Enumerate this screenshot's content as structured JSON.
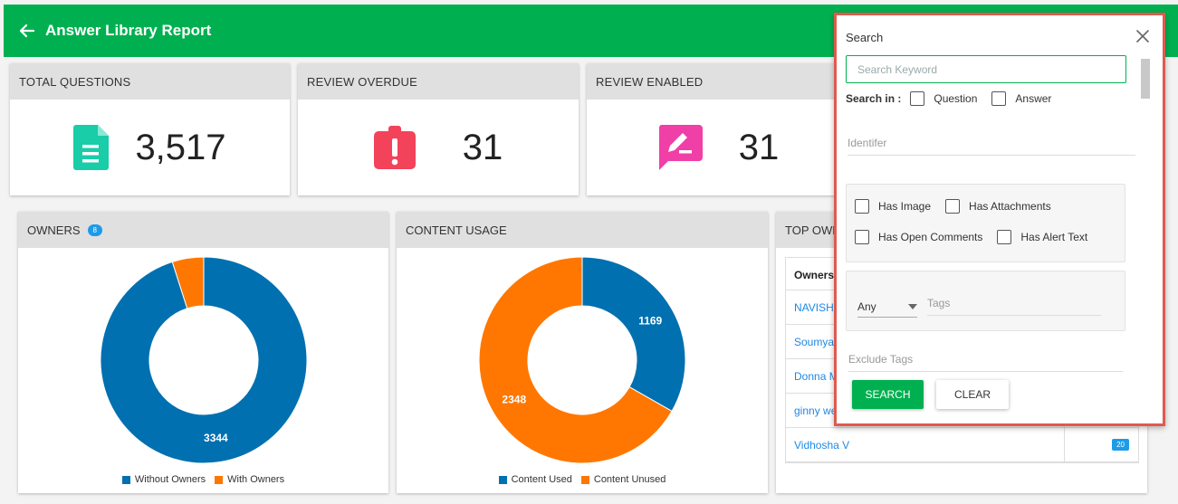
{
  "header": {
    "title": "Answer Library Report"
  },
  "stats": [
    {
      "caption": "TOTAL QUESTIONS",
      "value": "3,517",
      "icon": "document-icon",
      "color": "#19cda8"
    },
    {
      "caption": "REVIEW OVERDUE",
      "value": "31",
      "icon": "alert-clipboard-icon",
      "color": "#f2435a"
    },
    {
      "caption": "REVIEW ENABLED",
      "value": "31",
      "icon": "edit-comment-icon",
      "color": "#f03fa6"
    }
  ],
  "owners_panel": {
    "caption": "OWNERS",
    "badge": "8"
  },
  "usage_panel": {
    "caption": "CONTENT USAGE"
  },
  "top_owners_panel": {
    "caption": "TOP OWN",
    "column_owner": "Owners",
    "rows": [
      {
        "name": "NAVISHA",
        "count": ""
      },
      {
        "name": "Soumya",
        "count": ""
      },
      {
        "name": "Donna M",
        "count": ""
      },
      {
        "name": "ginny we",
        "count": ""
      },
      {
        "name": "Vidhosha V",
        "count": "20"
      }
    ]
  },
  "chart_data": [
    {
      "type": "pie",
      "categories": [
        "Without Owners",
        "With Owners"
      ],
      "values": [
        3344,
        173
      ],
      "data_labels": [
        "3344",
        ""
      ],
      "colors": [
        "#0070b0",
        "#ff7700"
      ],
      "legend": "bottom"
    },
    {
      "type": "pie",
      "categories": [
        "Content Used",
        "Content Unused"
      ],
      "values": [
        1169,
        2348
      ],
      "data_labels": [
        "1169",
        "2348"
      ],
      "colors": [
        "#0070b0",
        "#ff7700"
      ],
      "legend": "bottom"
    }
  ],
  "search": {
    "title": "Search",
    "keyword_placeholder": "Search Keyword",
    "search_in_label": "Search in :",
    "opt_question": "Question",
    "opt_answer": "Answer",
    "identifier_placeholder": "Identifer",
    "has_image": "Has Image",
    "has_attachments": "Has Attachments",
    "has_open_comments": "Has Open Comments",
    "has_alert_text": "Has Alert Text",
    "tags_mode": "Any",
    "tags_placeholder": "Tags",
    "exclude_tags_placeholder": "Exclude Tags",
    "search_button": "SEARCH",
    "clear_button": "CLEAR"
  }
}
